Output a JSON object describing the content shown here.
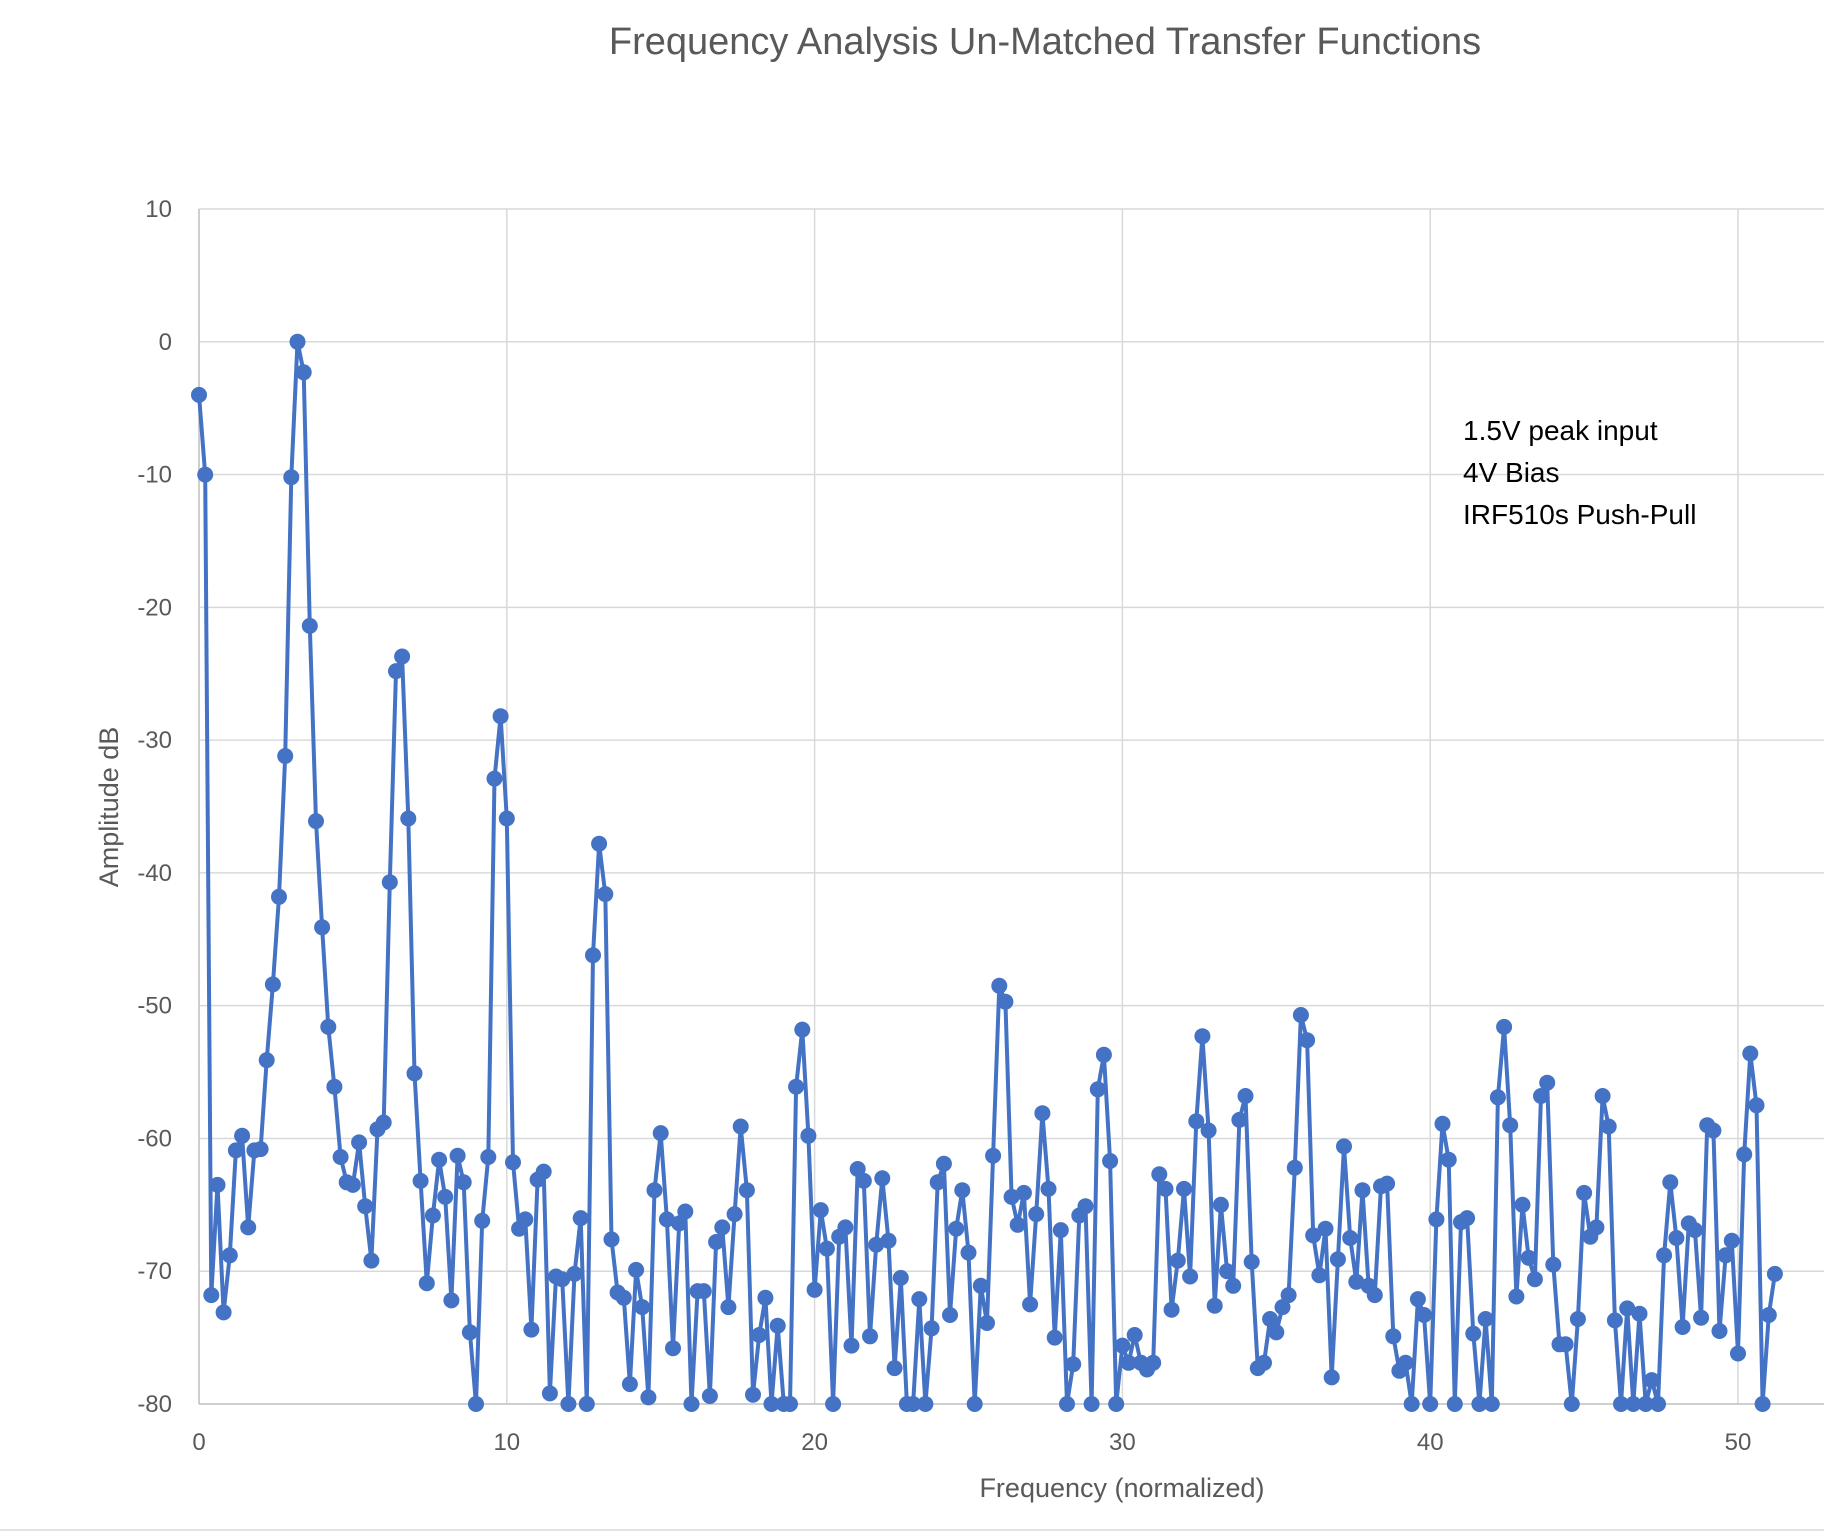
{
  "chart_data": {
    "type": "scatter",
    "title": "Frequency Analysis Un-Matched Transfer Functions",
    "xlabel": "Frequency (normalized)",
    "ylabel": "Amplitude dB",
    "xlim": [
      0,
      52
    ],
    "ylim": [
      -80,
      10
    ],
    "xticks": [
      0,
      10,
      20,
      30,
      40,
      50
    ],
    "yticks": [
      10,
      0,
      -10,
      -20,
      -30,
      -40,
      -50,
      -60,
      -70,
      -80
    ],
    "grid": true,
    "legend": "none",
    "color": "#4472c4",
    "annotation": [
      "1.5V peak input",
      "4V Bias",
      "IRF510s Push-Pull"
    ],
    "series": [
      {
        "x_start": 0,
        "x_step": 0.2,
        "values": [
          -4,
          -10,
          -71.8,
          -63.5,
          -73.1,
          -68.8,
          -60.9,
          -59.8,
          -66.7,
          -60.9,
          -60.8,
          -54.1,
          -48.4,
          -41.8,
          -31.2,
          -10.2,
          0,
          -2.3,
          -21.4,
          -36.1,
          -44.1,
          -51.6,
          -56.1,
          -61.4,
          -63.3,
          -63.5,
          -60.3,
          -65.1,
          -69.2,
          -59.3,
          -58.8,
          -40.7,
          -24.8,
          -23.7,
          -35.9,
          -55.1,
          -63.2,
          -70.9,
          -65.8,
          -61.6,
          -64.4,
          -72.2,
          -61.3,
          -63.3,
          -74.6,
          -80,
          -66.2,
          -61.4,
          -32.9,
          -28.2,
          -35.9,
          -61.8,
          -66.8,
          -66.1,
          -74.4,
          -63.1,
          -62.5,
          -79.2,
          -70.4,
          -70.6,
          -80,
          -70.2,
          -66,
          -80,
          -46.2,
          -37.8,
          -41.6,
          -67.6,
          -71.6,
          -72,
          -78.5,
          -69.9,
          -72.7,
          -79.5,
          -63.9,
          -59.6,
          -66.1,
          -75.8,
          -66.4,
          -65.5,
          -80,
          -71.5,
          -71.5,
          -79.4,
          -67.8,
          -66.7,
          -72.7,
          -65.7,
          -59.1,
          -63.9,
          -79.3,
          -74.8,
          -72,
          -80,
          -74.1,
          -80,
          -80,
          -56.1,
          -51.8,
          -59.8,
          -71.4,
          -65.4,
          -68.3,
          -80,
          -67.4,
          -66.7,
          -75.6,
          -62.3,
          -63.2,
          -74.9,
          -68,
          -63,
          -67.7,
          -77.3,
          -70.5,
          -80,
          -80,
          -72.1,
          -80,
          -74.3,
          -63.3,
          -61.9,
          -73.3,
          -66.8,
          -63.9,
          -68.6,
          -80,
          -71.1,
          -73.9,
          -61.3,
          -48.5,
          -49.7,
          -64.4,
          -66.5,
          -64.1,
          -72.5,
          -65.7,
          -58.1,
          -63.8,
          -75,
          -66.9,
          -80,
          -77,
          -65.8,
          -65.1,
          -80,
          -56.3,
          -53.7,
          -61.7,
          -80,
          -75.6,
          -76.9,
          -74.8,
          -76.9,
          -77.4,
          -76.9,
          -62.7,
          -63.8,
          -72.9,
          -69.2,
          -63.8,
          -70.4,
          -58.7,
          -52.3,
          -59.4,
          -72.6,
          -65,
          -70,
          -71.1,
          -58.6,
          -56.8,
          -69.3,
          -77.3,
          -76.9,
          -73.6,
          -74.6,
          -72.7,
          -71.8,
          -62.2,
          -50.7,
          -52.6,
          -67.3,
          -70.3,
          -66.8,
          -78,
          -69.1,
          -60.6,
          -67.5,
          -70.8,
          -63.9,
          -71.1,
          -71.8,
          -63.6,
          -63.4,
          -74.9,
          -77.5,
          -76.9,
          -80,
          -72.1,
          -73.3,
          -80,
          -66.1,
          -58.9,
          -61.6,
          -80,
          -66.3,
          -66,
          -74.7,
          -80,
          -73.6,
          -80,
          -56.9,
          -51.6,
          -59,
          -71.9,
          -65,
          -69,
          -70.6,
          -56.8,
          -55.8,
          -69.5,
          -75.5,
          -75.5,
          -80,
          -73.6,
          -64.1,
          -67.4,
          -66.7,
          -56.8,
          -59.1,
          -73.7,
          -80,
          -72.8,
          -80,
          -73.2,
          -80,
          -78.2,
          -80,
          -68.8,
          -63.3,
          -67.5,
          -74.2,
          -66.4,
          -66.9,
          -73.5,
          -59,
          -59.4,
          -74.5,
          -68.8,
          -67.7,
          -76.2,
          -61.2,
          -53.6,
          -57.5,
          -80,
          -73.3,
          -70.2
        ]
      }
    ]
  }
}
